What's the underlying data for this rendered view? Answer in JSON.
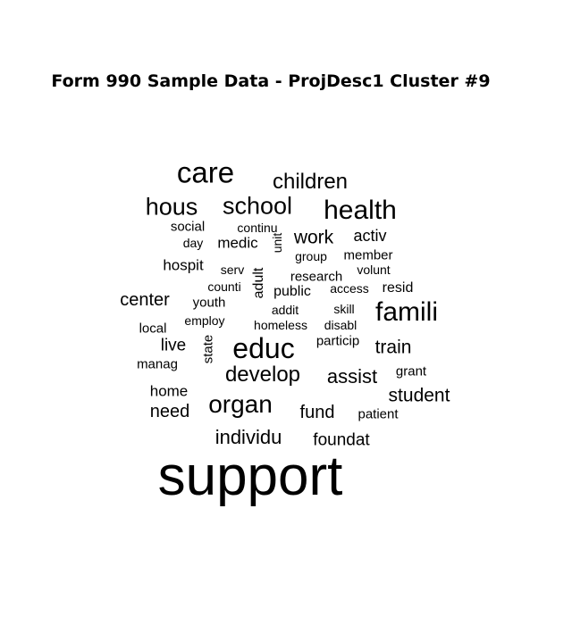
{
  "title": "Form 990 Sample Data - ProjDesc1 Cluster #9",
  "words": [
    "support",
    "care",
    "children",
    "hous",
    "school",
    "health",
    "social",
    "continu",
    "day",
    "medic",
    "unit",
    "work",
    "activ",
    "group",
    "member",
    "hospit",
    "serv",
    "adult",
    "research",
    "volunt",
    "counti",
    "public",
    "access",
    "resid",
    "center",
    "youth",
    "addit",
    "skill",
    "famili",
    "local",
    "employ",
    "homeless",
    "disabl",
    "live",
    "state",
    "educ",
    "particip",
    "train",
    "manag",
    "grant",
    "develop",
    "assist",
    "home",
    "student",
    "need",
    "organ",
    "fund",
    "patient",
    "individu",
    "foundat"
  ]
}
